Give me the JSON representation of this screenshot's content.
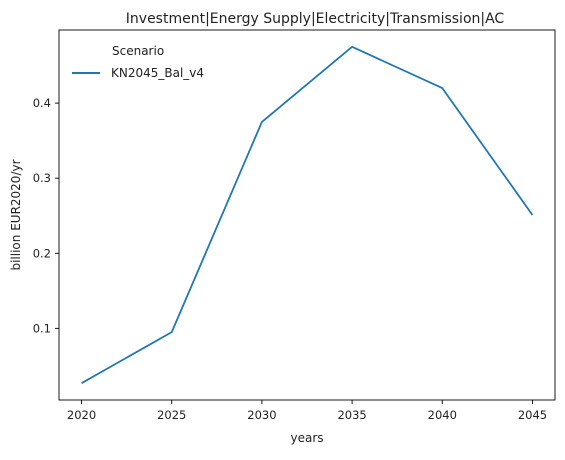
{
  "chart_data": {
    "type": "line",
    "title": "Investment|Energy Supply|Electricity|Transmission|AC",
    "xlabel": "years",
    "ylabel": "billion EUR2020/yr",
    "x": [
      2020,
      2025,
      2030,
      2035,
      2040,
      2045
    ],
    "series": [
      {
        "name": "KN2045_Bal_v4",
        "values": [
          0.027,
          0.095,
          0.375,
          0.475,
          0.42,
          0.251
        ],
        "color": "#1f77b4"
      }
    ],
    "xticks": [
      2020,
      2025,
      2030,
      2035,
      2040,
      2045
    ],
    "yticks": [
      0.1,
      0.2,
      0.3,
      0.4
    ],
    "xlim": [
      2018.75,
      2046.25
    ],
    "ylim": [
      0.0046,
      0.4974
    ],
    "grid": false,
    "legend": {
      "title": "Scenario",
      "placement": "top-left"
    }
  }
}
